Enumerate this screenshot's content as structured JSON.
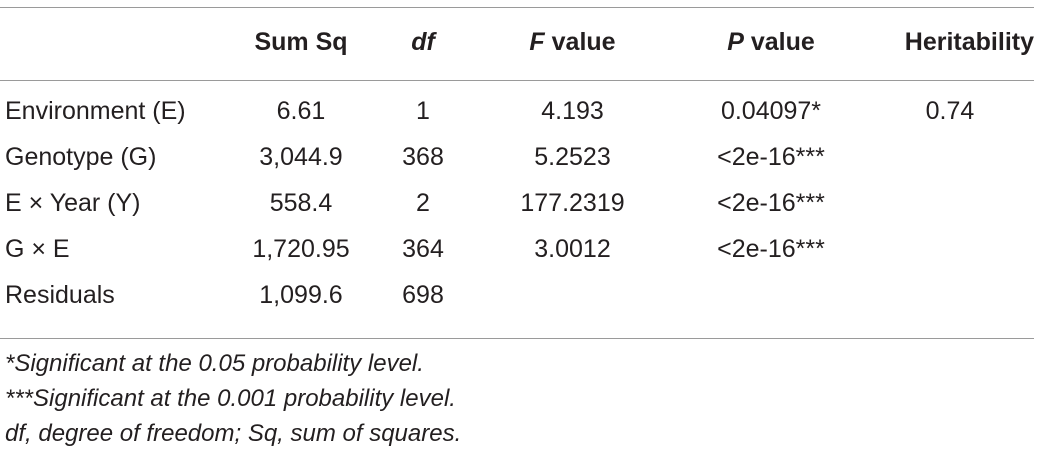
{
  "table": {
    "headers": [
      {
        "pre": "",
        "italic": "",
        "post": ""
      },
      {
        "pre": "Sum Sq",
        "italic": "",
        "post": ""
      },
      {
        "pre": "",
        "italic": "df",
        "post": ""
      },
      {
        "pre": "",
        "italic": "F",
        "post": " value"
      },
      {
        "pre": "",
        "italic": "P",
        "post": " value"
      },
      {
        "pre": "Heritability",
        "italic": "",
        "post": ""
      }
    ],
    "rows": [
      {
        "source": "Environment (E)",
        "sum_sq": "6.61",
        "df": "1",
        "f_value": "4.193",
        "p_value": "0.04097*",
        "heritability": "0.74"
      },
      {
        "source": "Genotype (G)",
        "sum_sq": "3,044.9",
        "df": "368",
        "f_value": "5.2523",
        "p_value": "<2e-16***",
        "heritability": ""
      },
      {
        "source": "E × Year (Y)",
        "sum_sq": "558.4",
        "df": "2",
        "f_value": "177.2319",
        "p_value": "<2e-16***",
        "heritability": ""
      },
      {
        "source": "G × E",
        "sum_sq": "1,720.95",
        "df": "364",
        "f_value": "3.0012",
        "p_value": "<2e-16***",
        "heritability": ""
      },
      {
        "source": "Residuals",
        "sum_sq": "1,099.6",
        "df": "698",
        "f_value": "",
        "p_value": "",
        "heritability": ""
      }
    ]
  },
  "footnotes": [
    "*Significant at the 0.05 probability level.",
    "***Significant at the 0.001 probability level.",
    "df, degree of freedom; Sq, sum of squares."
  ]
}
